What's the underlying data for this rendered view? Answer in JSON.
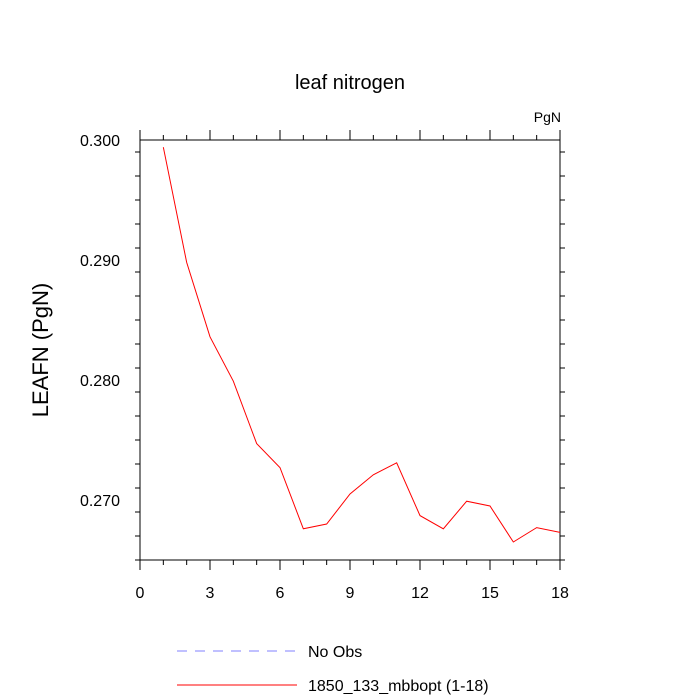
{
  "chart_data": {
    "type": "line",
    "title": "leaf nitrogen",
    "units_label": "PgN",
    "ylabel": "LEAFN  (PgN)",
    "xlabel": "",
    "xlim": [
      0,
      18
    ],
    "ylim": [
      0.265,
      0.3
    ],
    "x_ticks": [
      0,
      3,
      6,
      9,
      12,
      15,
      18
    ],
    "y_ticks": [
      "0.270",
      "0.280",
      "0.290",
      "0.300"
    ],
    "y_tick_values": [
      0.27,
      0.28,
      0.29,
      0.3
    ],
    "grid": false,
    "series": [
      {
        "name": "No Obs",
        "color": "#8080ff",
        "style": "dashed",
        "x": [],
        "y": []
      },
      {
        "name": "1850_133_mbbopt (1-18)",
        "color": "#ff0000",
        "style": "solid",
        "x": [
          1,
          2,
          3,
          4,
          5,
          6,
          7,
          8,
          9,
          10,
          11,
          12,
          13,
          14,
          15,
          16,
          17,
          18
        ],
        "y": [
          0.2994,
          0.2898,
          0.2836,
          0.2799,
          0.2747,
          0.2727,
          0.2676,
          0.268,
          0.2705,
          0.2721,
          0.2731,
          0.2687,
          0.2676,
          0.2699,
          0.2695,
          0.2665,
          0.2677,
          0.2673
        ]
      }
    ],
    "legend_position": "bottom"
  }
}
